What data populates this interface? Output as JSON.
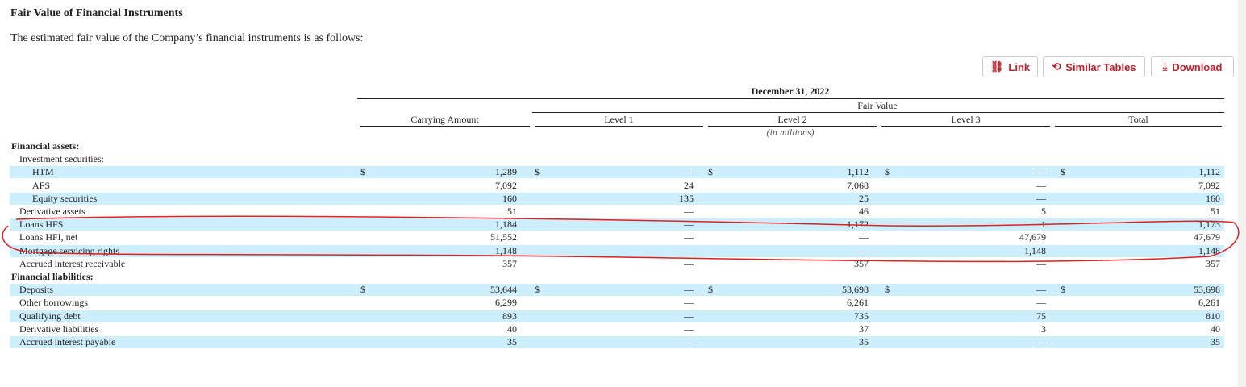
{
  "header": {
    "title": "Fair Value of Financial Instruments",
    "intro": "The estimated fair value of the Company’s financial instruments is as follows:"
  },
  "toolbar": {
    "buttons": [
      "Link",
      "Similar Tables",
      "Download"
    ]
  },
  "table": {
    "period": "December 31, 2022",
    "group": "Fair Value",
    "unit": "(in millions)",
    "currency": "$",
    "columns": [
      "Carrying Amount",
      "Level 1",
      "Level 2",
      "Level 3",
      "Total"
    ],
    "sections": [
      {
        "title": "Financial assets:",
        "items": [
          {
            "label": "Investment securities:",
            "items": [
              {
                "label": "HTM",
                "values": [
                  "1,289",
                  "—",
                  "1,112",
                  "—",
                  "1,112"
                ]
              },
              {
                "label": "AFS",
                "values": [
                  "7,092",
                  "24",
                  "7,068",
                  "—",
                  "7,092"
                ]
              },
              {
                "label": "Equity securities",
                "values": [
                  "160",
                  "135",
                  "25",
                  "—",
                  "160"
                ]
              }
            ]
          },
          {
            "label": "Derivative assets",
            "values": [
              "51",
              "—",
              "46",
              "5",
              "51"
            ]
          },
          {
            "label": "Loans HFS",
            "values": [
              "1,184",
              "—",
              "1,172",
              "1",
              "1,173"
            ]
          },
          {
            "label": "Loans HFI, net",
            "values": [
              "51,552",
              "—",
              "—",
              "47,679",
              "47,679"
            ]
          },
          {
            "label": "Mortgage servicing rights",
            "values": [
              "1,148",
              "—",
              "—",
              "1,148",
              "1,148"
            ]
          },
          {
            "label": "Accrued interest receivable",
            "values": [
              "357",
              "—",
              "357",
              "—",
              "357"
            ]
          }
        ]
      },
      {
        "title": "Financial liabilities:",
        "items": [
          {
            "label": "Deposits",
            "values": [
              "53,644",
              "—",
              "53,698",
              "—",
              "53,698"
            ]
          },
          {
            "label": "Other borrowings",
            "values": [
              "6,299",
              "—",
              "6,261",
              "—",
              "6,261"
            ]
          },
          {
            "label": "Qualifying debt",
            "values": [
              "893",
              "—",
              "735",
              "75",
              "810"
            ]
          },
          {
            "label": "Derivative liabilities",
            "values": [
              "40",
              "—",
              "37",
              "3",
              "40"
            ]
          },
          {
            "label": "Accrued interest payable",
            "values": [
              "35",
              "—",
              "35",
              "—",
              "35"
            ]
          }
        ]
      }
    ]
  }
}
